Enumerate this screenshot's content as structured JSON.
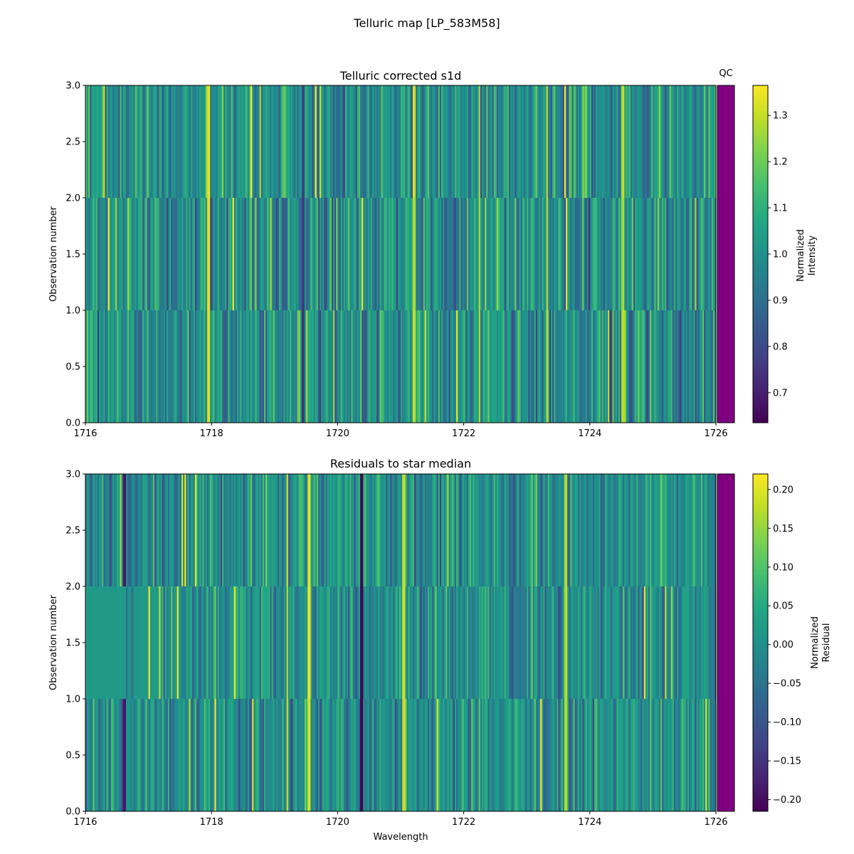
{
  "figure": {
    "title": "Telluric map [LP_583M58]"
  },
  "chart_data": [
    {
      "type": "heatmap",
      "title": "Telluric corrected s1d",
      "xlabel": "",
      "ylabel": "Observation number",
      "xlim": [
        1716,
        1726
      ],
      "ylim": [
        0.0,
        3.0
      ],
      "x_ticks": [
        "1716",
        "1718",
        "1720",
        "1722",
        "1724",
        "1726"
      ],
      "y_ticks": [
        "0.0",
        "0.5",
        "1.0",
        "1.5",
        "2.0",
        "2.5",
        "3.0"
      ],
      "rows": [
        "0",
        "1",
        "2"
      ],
      "colormap": "viridis",
      "colorbar": {
        "label_line1": "Normalized",
        "label_line2": "Intensity",
        "range": [
          0.635,
          1.365
        ],
        "ticks": [
          "0.7",
          "0.8",
          "0.9",
          "1.0",
          "1.1",
          "1.2",
          "1.3"
        ]
      },
      "qc_label": "QC",
      "qc_color": "#800080",
      "line_features": [
        {
          "x": 1717.95,
          "value": 1.32
        },
        {
          "x": 1721.22,
          "value": 1.3
        },
        {
          "x": 1722.25,
          "value": 1.28
        },
        {
          "x": 1723.32,
          "value": 1.31
        },
        {
          "x": 1724.52,
          "value": 1.29
        },
        {
          "x": 1719.45,
          "value": 0.76
        }
      ]
    },
    {
      "type": "heatmap",
      "title": "Residuals to star median",
      "xlabel": "Wavelength",
      "ylabel": "Observation number",
      "xlim": [
        1716,
        1726
      ],
      "ylim": [
        0.0,
        3.0
      ],
      "x_ticks": [
        "1716",
        "1718",
        "1720",
        "1722",
        "1724",
        "1726"
      ],
      "y_ticks": [
        "0.0",
        "0.5",
        "1.0",
        "1.5",
        "2.0",
        "2.5",
        "3.0"
      ],
      "rows": [
        "0",
        "1",
        "2"
      ],
      "colormap": "viridis",
      "colorbar": {
        "label_line1": "Normalized",
        "label_line2": "Residual",
        "range": [
          -0.215,
          0.22
        ],
        "ticks": [
          "0.20",
          "0.15",
          "0.10",
          "0.05",
          "0.00",
          "−0.05",
          "−0.10",
          "−0.15",
          "−0.20"
        ]
      },
      "qc_label": "",
      "qc_color": "#800080",
      "line_features": [
        {
          "x": 1719.2,
          "value": 0.19
        },
        {
          "x": 1719.55,
          "value": 0.2
        },
        {
          "x": 1721.05,
          "value": 0.18
        },
        {
          "x": 1723.62,
          "value": 0.17
        },
        {
          "x": 1716.62,
          "value": -0.19
        },
        {
          "x": 1720.38,
          "value": -0.2
        }
      ]
    }
  ]
}
